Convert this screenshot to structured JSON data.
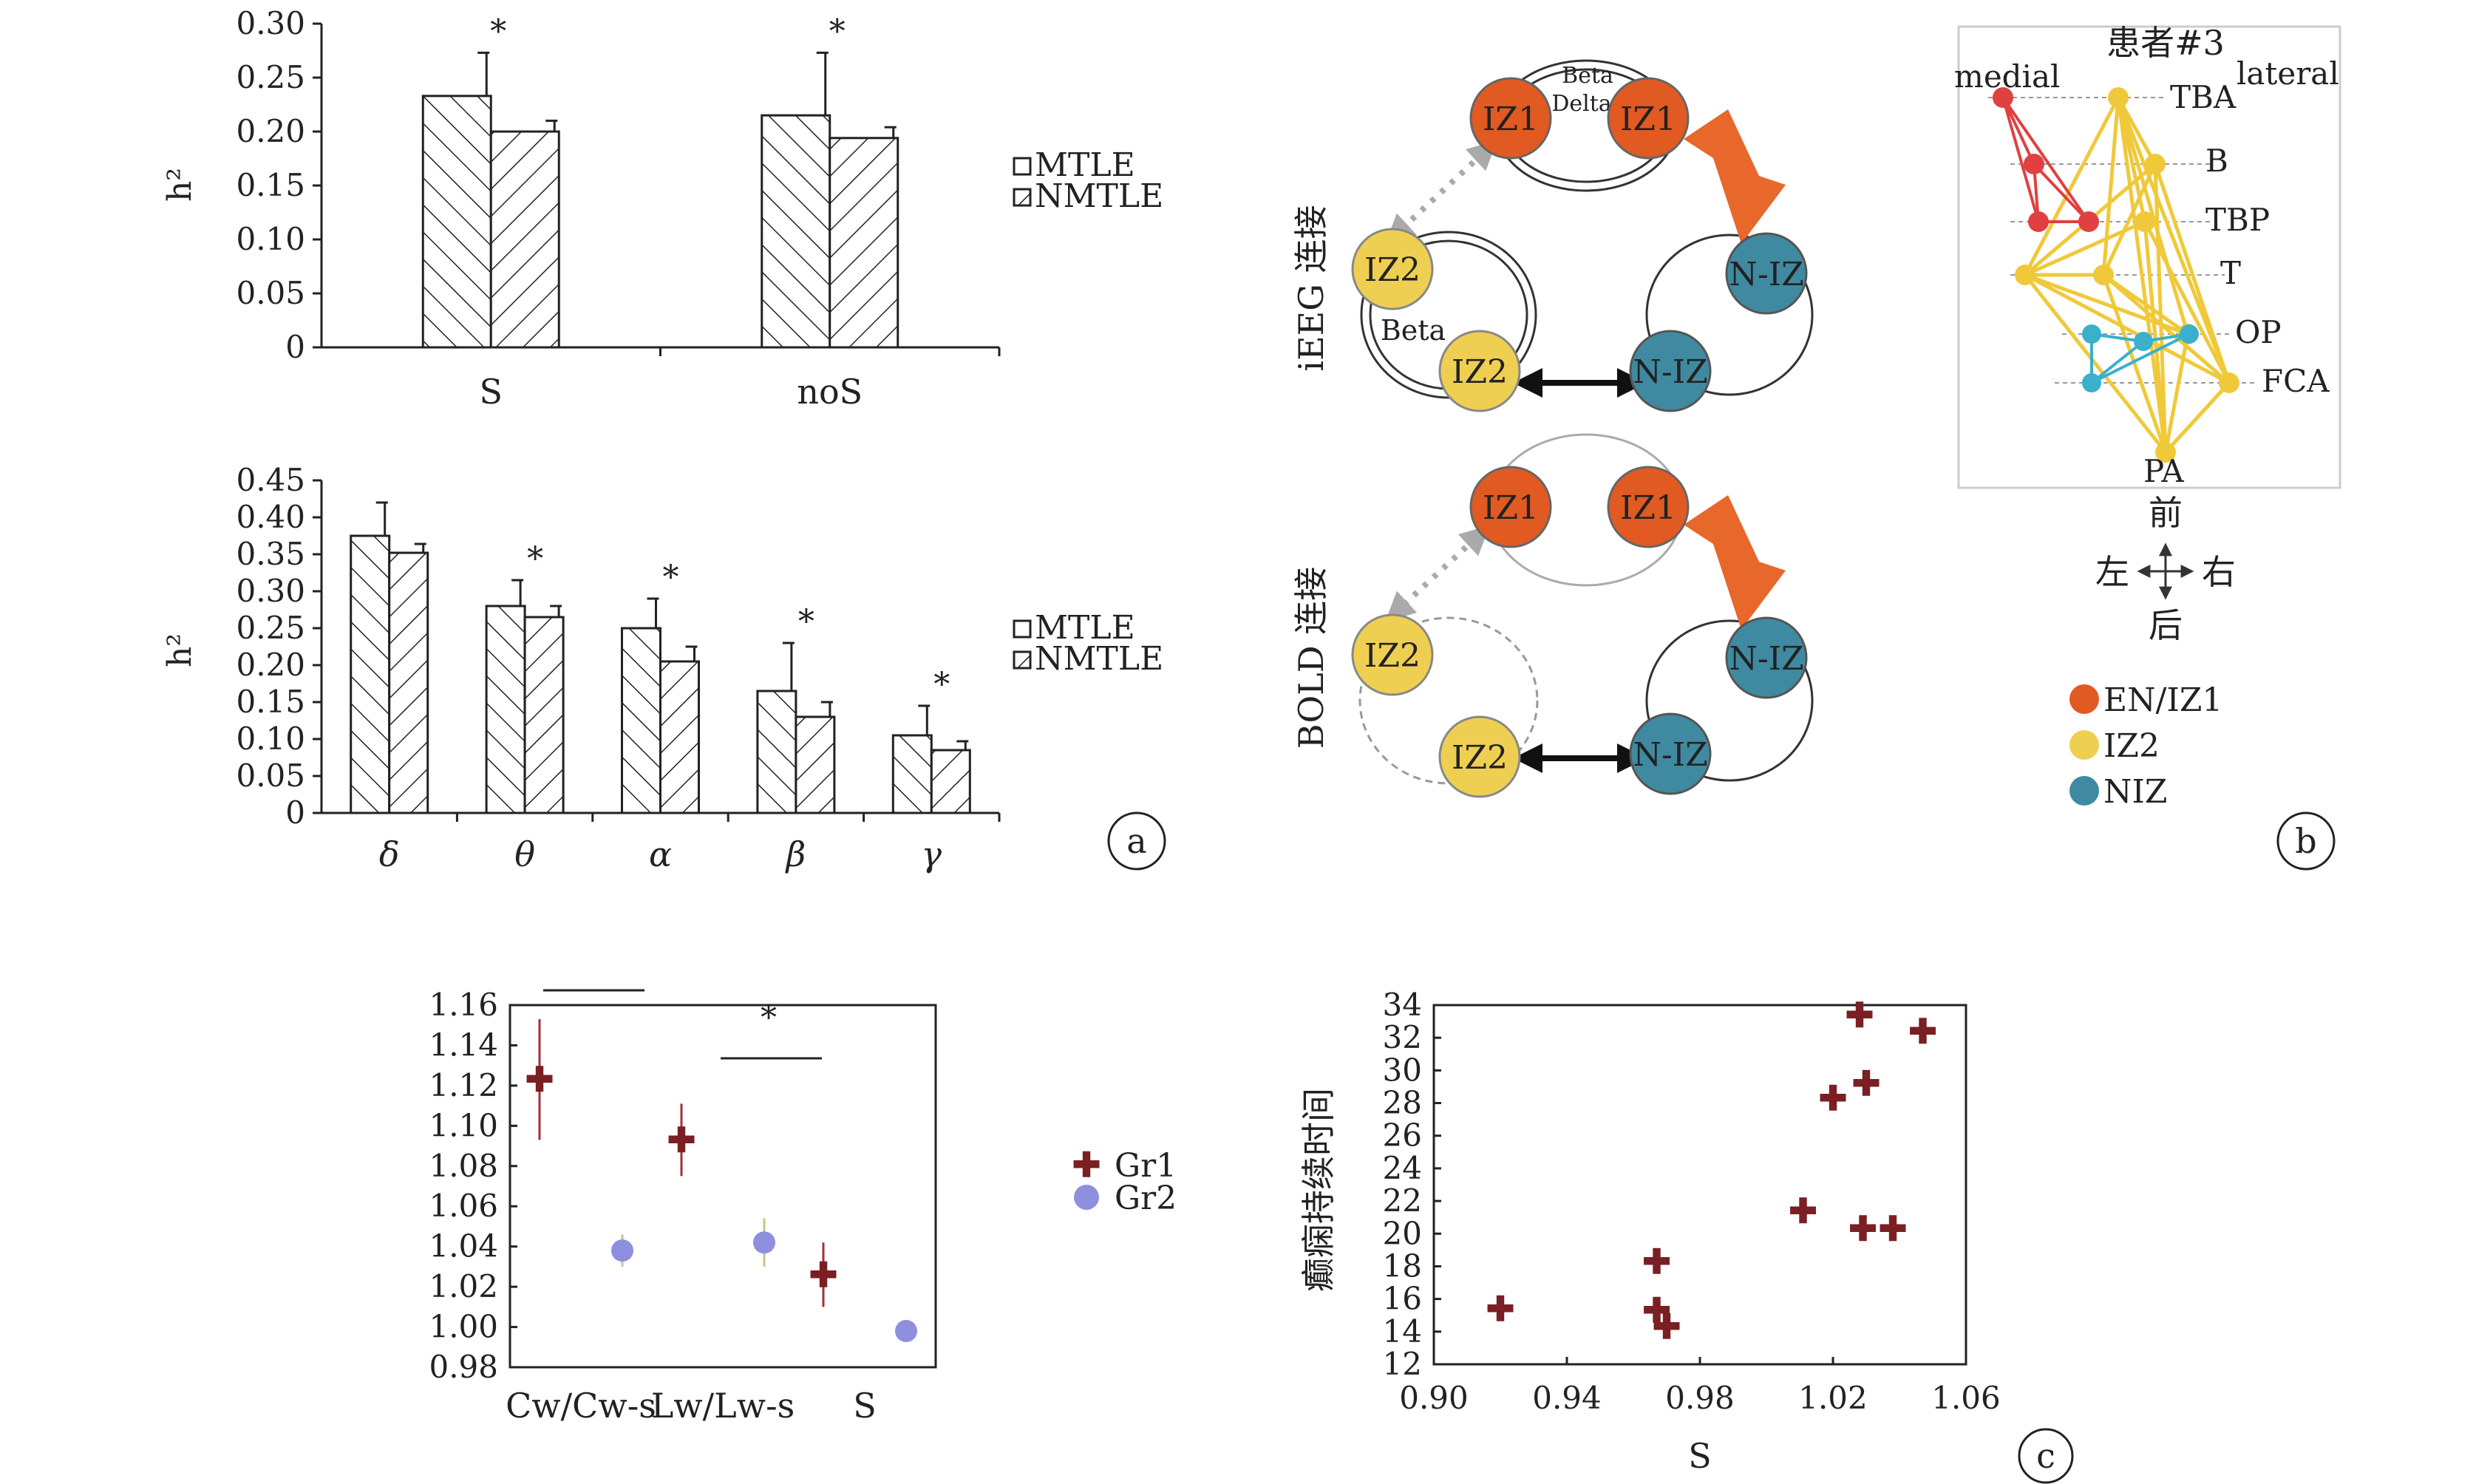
{
  "colors": {
    "gr1": "#7a1f24",
    "gr2": "#8f8fe0",
    "iz1": "#e05a22",
    "iz2": "#efcf52",
    "niz": "#3f8aa0",
    "arrow": "#e8672a",
    "anat_red": "#e04040",
    "anat_yellow": "#f0c93a",
    "anat_cyan": "#3ab0cc"
  },
  "panel_labels": {
    "a": "a",
    "b": "b",
    "c": "c"
  },
  "legends": {
    "a1": [
      "MTLE",
      "NMTLE"
    ],
    "a2": [
      "MTLE",
      "NMTLE"
    ],
    "c1": [
      "Gr1",
      "Gr2"
    ]
  },
  "network": {
    "row1_label": "iEEG 连接",
    "row2_label": "BOLD 连接",
    "node_iz1": "IZ1",
    "node_iz2": "IZ2",
    "node_niz": "N-IZ",
    "band_beta": "Beta",
    "band_delta": "Delta"
  },
  "anatomy": {
    "title": "患者#3",
    "medial": "medial",
    "lateral": "lateral",
    "regions": [
      "TBA",
      "B",
      "TBP",
      "T",
      "OP",
      "FCA",
      "PA"
    ],
    "compass": {
      "up": "前",
      "down": "后",
      "left": "左",
      "right": "右"
    },
    "legend": [
      "EN/IZ1",
      "IZ2",
      "NIZ"
    ]
  },
  "chart_data": [
    {
      "type": "bar",
      "categories": [
        "S",
        "noS"
      ],
      "series": [
        {
          "name": "MTLE",
          "values": [
            0.233,
            0.215
          ],
          "errors": [
            0.04,
            0.058
          ]
        },
        {
          "name": "NMTLE",
          "values": [
            0.2,
            0.194
          ],
          "errors": [
            0.01,
            0.01
          ]
        }
      ],
      "significance": [
        "*",
        "*"
      ],
      "ylabel": "h²",
      "ylim": [
        0,
        0.3
      ],
      "yticks": [
        "0",
        "0.05",
        "0.10",
        "0.15",
        "0.20",
        "0.25",
        "0.30"
      ]
    },
    {
      "type": "bar",
      "categories": [
        "δ",
        "θ",
        "α",
        "β",
        "γ"
      ],
      "series": [
        {
          "name": "MTLE",
          "values": [
            0.375,
            0.28,
            0.25,
            0.165,
            0.105
          ],
          "errors": [
            0.045,
            0.035,
            0.04,
            0.065,
            0.04
          ]
        },
        {
          "name": "NMTLE",
          "values": [
            0.352,
            0.265,
            0.205,
            0.13,
            0.085
          ],
          "errors": [
            0.012,
            0.015,
            0.02,
            0.02,
            0.012
          ]
        }
      ],
      "significance": [
        "",
        "*",
        "*",
        "*",
        "*"
      ],
      "ylabel": "h²",
      "ylim": [
        0,
        0.45
      ],
      "yticks": [
        "0",
        "0.05",
        "0.10",
        "0.15",
        "0.20",
        "0.25",
        "0.30",
        "0.35",
        "0.40",
        "0.45"
      ]
    },
    {
      "type": "scatter",
      "categories": [
        "Cw/Cw-s",
        "Lw/Lw-s",
        "S"
      ],
      "series": [
        {
          "name": "Gr1",
          "values": [
            1.123,
            1.093,
            1.026
          ],
          "errors": [
            0.03,
            0.018,
            0.016
          ]
        },
        {
          "name": "Gr2",
          "values": [
            1.038,
            1.042,
            0.998
          ],
          "errors": [
            0.008,
            0.012,
            0.004
          ]
        }
      ],
      "significance": [
        "",
        "*",
        ""
      ],
      "ylim": [
        0.98,
        1.16
      ],
      "yticks": [
        "0.98",
        "1.00",
        "1.02",
        "1.04",
        "1.06",
        "1.08",
        "1.10",
        "1.12",
        "1.14",
        "1.16"
      ]
    },
    {
      "type": "scatter",
      "xlabel": "S",
      "ylabel": "癫痫持续时间",
      "xlim": [
        0.9,
        1.06
      ],
      "ylim": [
        12,
        34
      ],
      "xticks": [
        "0.90",
        "0.94",
        "0.98",
        "1.02",
        "1.06"
      ],
      "yticks": [
        "12",
        "14",
        "16",
        "18",
        "20",
        "22",
        "24",
        "26",
        "28",
        "30",
        "32",
        "34"
      ],
      "points": [
        {
          "x": 0.92,
          "y": 15.4
        },
        {
          "x": 0.967,
          "y": 18.3
        },
        {
          "x": 0.967,
          "y": 15.3
        },
        {
          "x": 0.97,
          "y": 14.3
        },
        {
          "x": 1.011,
          "y": 21.4
        },
        {
          "x": 1.02,
          "y": 28.3
        },
        {
          "x": 1.028,
          "y": 33.4
        },
        {
          "x": 1.03,
          "y": 29.2
        },
        {
          "x": 1.029,
          "y": 20.3
        },
        {
          "x": 1.038,
          "y": 20.3
        },
        {
          "x": 1.047,
          "y": 32.4
        }
      ]
    }
  ]
}
